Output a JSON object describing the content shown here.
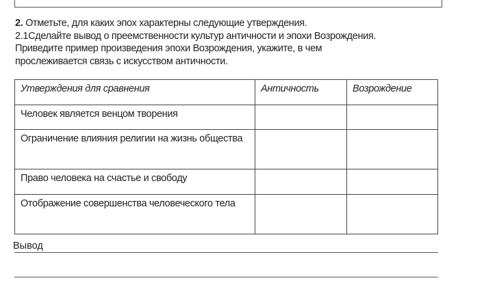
{
  "task": {
    "number": "2.",
    "line1": "Отметьте, для каких эпох характерны следующие утверждения.",
    "line2": "2.1Сделайте вывод о преемственности культур античности и эпохи Возрождения.",
    "line3": "Приведите пример произведения эпохи Возрождения, укажите, в чем",
    "line4": "прослеживается связь с искусством античности."
  },
  "table": {
    "headers": [
      "Утверждения для сравнения",
      "Античность",
      "Возрождение"
    ],
    "rows": [
      [
        "Человек является венцом творения",
        "",
        ""
      ],
      [
        "Ограничение влияния религии на жизнь общества",
        "",
        ""
      ],
      [
        "Право человека на счастье и свободу",
        "",
        ""
      ],
      [
        "Отображение совершенства человеческого тела",
        "",
        ""
      ]
    ]
  },
  "conclusion_label": "Вывод"
}
